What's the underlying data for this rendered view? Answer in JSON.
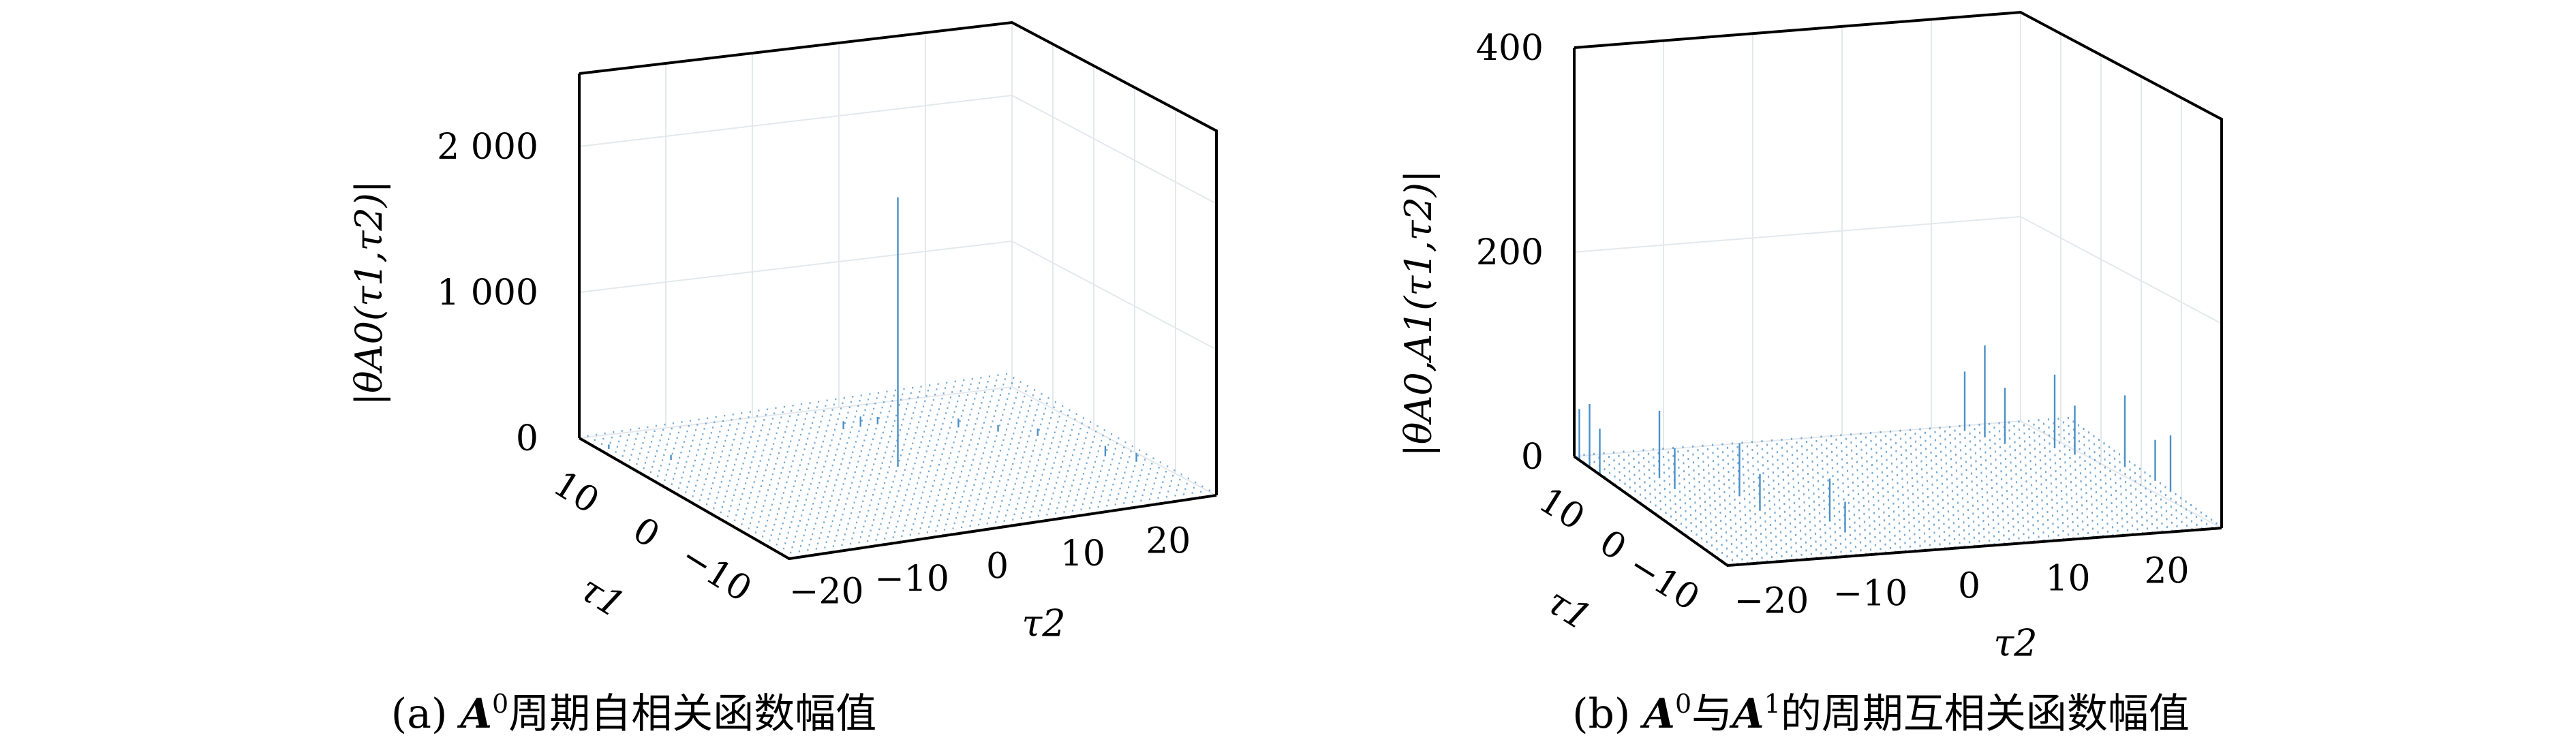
{
  "chart_data": [
    {
      "type": "bar3d",
      "panel": "(a)",
      "caption": "(a) A⁰周期自相关函数幅值",
      "caption_parts": {
        "prefix": "(a) ",
        "matrix": "A",
        "exp": "0",
        "text": "周期自相关函数幅值"
      },
      "zlabel": "|θA0(τ1,τ2)|",
      "xlabel": "τ2",
      "ylabel": "τ1",
      "x_ticks": [
        "−20",
        "−10",
        "0",
        "10",
        "20"
      ],
      "y_ticks": [
        "10",
        "0",
        "−10"
      ],
      "z_ticks": [
        "0",
        "1 000",
        "2 000"
      ],
      "xlim": [
        -25,
        25
      ],
      "ylim": [
        -15,
        15
      ],
      "zlim": [
        0,
        2500
      ],
      "grid": true,
      "series_color": "#4a90c8",
      "baseline_value": 10,
      "peaks": [
        {
          "tau2": 0,
          "tau1": 0,
          "value": 1848
        },
        {
          "tau2": 1,
          "tau1": 9,
          "value": 55
        },
        {
          "tau2": 3,
          "tau1": 9,
          "value": 70
        },
        {
          "tau2": 5,
          "tau1": 9,
          "value": 50
        },
        {
          "tau2": 12,
          "tau1": 6,
          "value": 60
        },
        {
          "tau2": 15,
          "tau1": 4,
          "value": 45
        },
        {
          "tau2": 18,
          "tau1": 2,
          "value": 50
        },
        {
          "tau2": 21,
          "tau1": -4,
          "value": 70
        },
        {
          "tau2": 23,
          "tau1": -6,
          "value": 60
        },
        {
          "tau2": -24,
          "tau1": 12,
          "value": 30
        },
        {
          "tau2": -20,
          "tau1": 8,
          "value": 35
        }
      ]
    },
    {
      "type": "bar3d",
      "panel": "(b)",
      "caption": "(b) A⁰与A¹的周期互相关函数幅值",
      "caption_parts": {
        "prefix": "(b) ",
        "matrix1": "A",
        "exp1": "0",
        "mid": "与",
        "matrix2": "A",
        "exp2": "1",
        "text": "的周期互相关函数幅值"
      },
      "zlabel": "|θA0,A1(τ1,τ2)|",
      "xlabel": "τ2",
      "ylabel": "τ1",
      "x_ticks": [
        "−20",
        "−10",
        "0",
        "10",
        "20"
      ],
      "y_ticks": [
        "10",
        "0",
        "−10"
      ],
      "z_ticks": [
        "0",
        "200",
        "400"
      ],
      "xlim": [
        -25,
        25
      ],
      "ylim": [
        -15,
        15
      ],
      "zlim": [
        0,
        400
      ],
      "grid": true,
      "series_color": "#4a90c8",
      "baseline_value": 2,
      "peaks": [
        {
          "tau2": -25,
          "tau1": 14,
          "value": 50
        },
        {
          "tau2": -25,
          "tau1": 12,
          "value": 62
        },
        {
          "tau2": -25,
          "tau1": 10,
          "value": 45
        },
        {
          "tau2": -20,
          "tau1": 8,
          "value": 66
        },
        {
          "tau2": -20,
          "tau1": 5,
          "value": 40
        },
        {
          "tau2": -15,
          "tau1": 2,
          "value": 52
        },
        {
          "tau2": -15,
          "tau1": -2,
          "value": 36
        },
        {
          "tau2": -10,
          "tau1": -6,
          "value": 42
        },
        {
          "tau2": -10,
          "tau1": -9,
          "value": 30
        },
        {
          "tau2": 14,
          "tau1": 14,
          "value": 58
        },
        {
          "tau2": 15,
          "tau1": 12,
          "value": 90
        },
        {
          "tau2": 16,
          "tau1": 10,
          "value": 55
        },
        {
          "tau2": 20,
          "tau1": 8,
          "value": 72
        },
        {
          "tau2": 21,
          "tau1": 6,
          "value": 48
        },
        {
          "tau2": 24,
          "tau1": 2,
          "value": 70
        },
        {
          "tau2": 25,
          "tau1": -2,
          "value": 40
        },
        {
          "tau2": 25,
          "tau1": -5,
          "value": 55
        }
      ]
    }
  ],
  "colors": {
    "axis": "#000000",
    "grid": "#e4e8ec",
    "bar": "#4a90c8"
  }
}
